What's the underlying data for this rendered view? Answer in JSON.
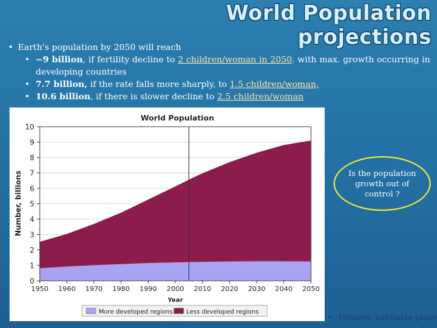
{
  "slide": {
    "title": "World Population projections",
    "bullets": {
      "main": "Earth's population by 2050 will reach",
      "b1_bold": "~9 billion",
      "b1_mid": ", if fertility decline to ",
      "b1_link": "2 children/woman in 2050",
      "b1_end": ". with max. growth occurring in developing countries",
      "b2_bold": "7.7 billion,",
      "b2_mid": " if the rate falls more sharply, to ",
      "b2_link": "1.5 children/woman,",
      "b3_bold": "10.6 billion",
      "b3_mid": ",  if there is slower decline to ",
      "b3_link": "2.5 children/woman"
    },
    "callout": "Is the population growth out  of control ?",
    "source": "(Source: habitable planet)",
    "bullet_char": "•"
  },
  "chart_data": {
    "type": "area",
    "title": "World Population",
    "xlabel": "Year",
    "ylabel": "Number, billions",
    "xlim": [
      1950,
      2050
    ],
    "ylim": [
      0,
      10
    ],
    "x_ticks": [
      1950,
      1960,
      1970,
      1980,
      1990,
      2000,
      2010,
      2020,
      2030,
      2040,
      2050
    ],
    "y_ticks": [
      0,
      1,
      2,
      3,
      4,
      5,
      6,
      7,
      8,
      9,
      10
    ],
    "vertical_line_x": 2005,
    "stacked": true,
    "x": [
      1950,
      1960,
      1970,
      1980,
      1990,
      2000,
      2005,
      2010,
      2020,
      2030,
      2040,
      2050
    ],
    "series": [
      {
        "name": "More developed regions",
        "color": "#a9a4f2",
        "values": [
          0.81,
          0.92,
          1.01,
          1.08,
          1.15,
          1.19,
          1.21,
          1.23,
          1.25,
          1.26,
          1.26,
          1.25
        ]
      },
      {
        "name": "Less developed regions",
        "color": "#8b1c4b",
        "values": [
          1.72,
          2.12,
          2.68,
          3.34,
          4.12,
          4.93,
          5.35,
          5.75,
          6.45,
          7.05,
          7.55,
          7.85
        ]
      }
    ],
    "legend_position": "bottom"
  }
}
